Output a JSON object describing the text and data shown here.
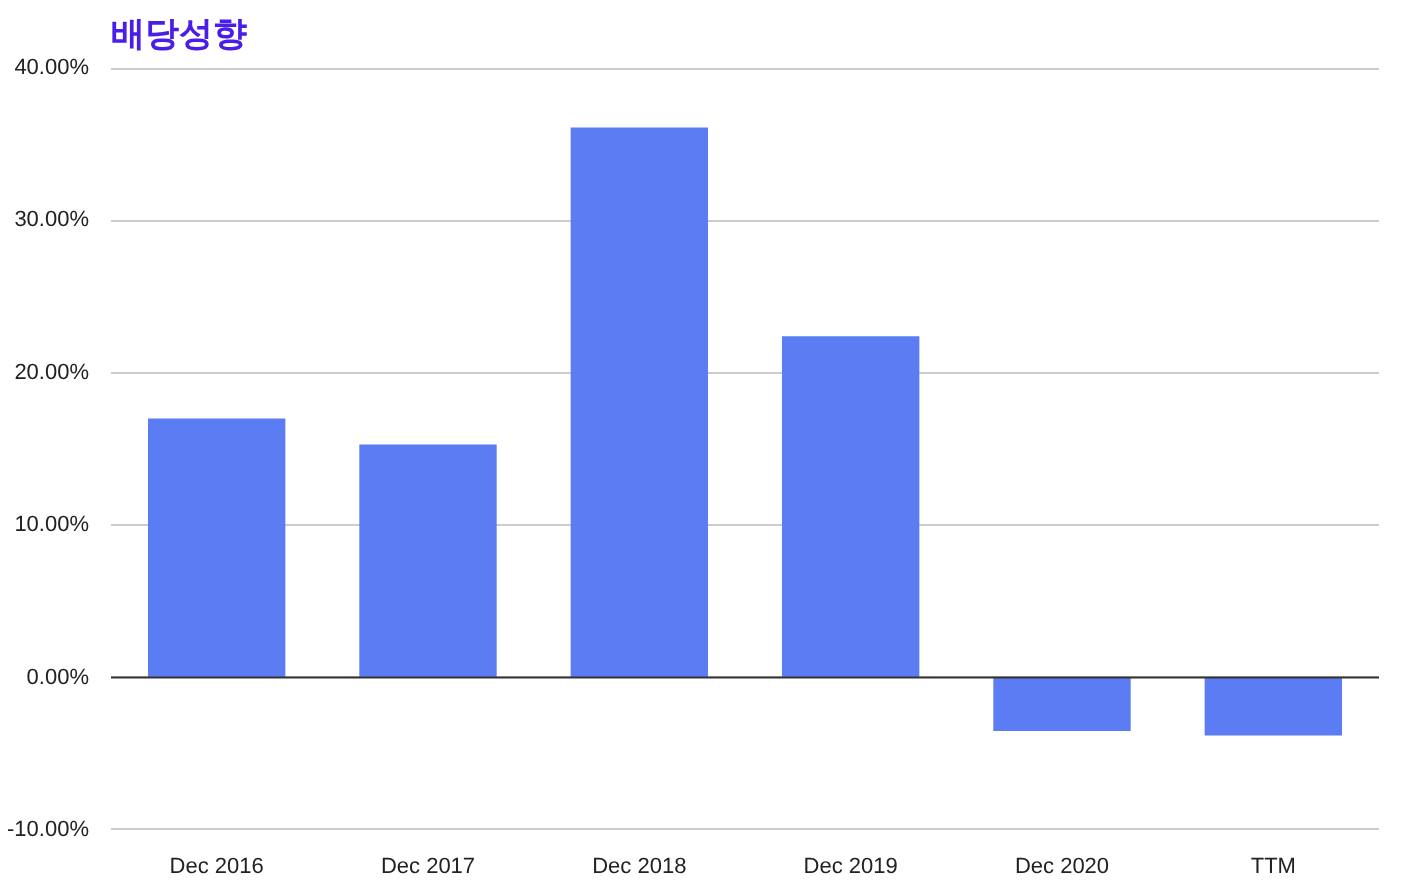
{
  "chart_data": {
    "type": "bar",
    "title": "배당성향",
    "categories": [
      "Dec 2016",
      "Dec 2017",
      "Dec 2018",
      "Dec 2019",
      "Dec 2020",
      "TTM"
    ],
    "values": [
      17.0,
      15.3,
      36.1,
      22.4,
      -3.5,
      -3.8
    ],
    "color": "#5b7cf2",
    "ylim": [
      -10.2,
      40.2
    ],
    "yticks": [
      {
        "value": -10,
        "label": "-10.00%"
      },
      {
        "value": 0,
        "label": "0.00%"
      },
      {
        "value": 10,
        "label": "10.00%"
      },
      {
        "value": 20,
        "label": "20.00%"
      },
      {
        "value": 30,
        "label": "30.00%"
      },
      {
        "value": 40,
        "label": "40.00%"
      }
    ],
    "grid": "y",
    "ref_lines": [
      {
        "axis": "y",
        "value": 0,
        "color": "#333333"
      }
    ]
  }
}
